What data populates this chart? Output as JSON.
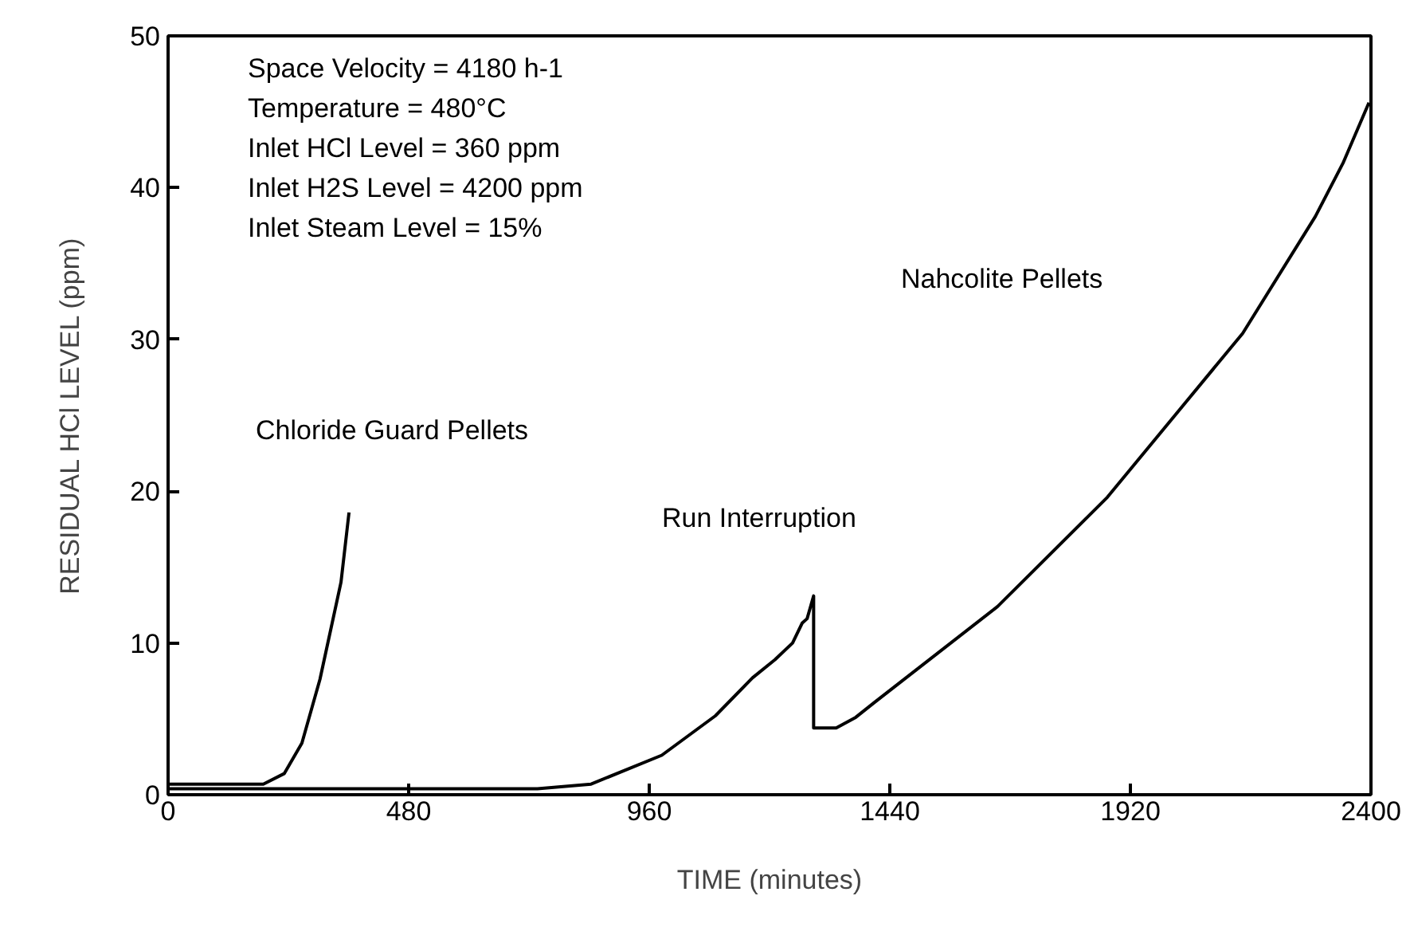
{
  "chart_data": {
    "type": "line",
    "xlabel": "TIME (minutes)",
    "ylabel": "RESIDUAL HCl LEVEL (ppm)",
    "xlim": [
      0,
      2400
    ],
    "ylim": [
      0,
      50
    ],
    "xticks": [
      0,
      480,
      960,
      1440,
      1920,
      2400
    ],
    "yticks": [
      0,
      10,
      20,
      30,
      40,
      50
    ],
    "grid": false,
    "marker": "none",
    "line_style": "solid",
    "series": [
      {
        "color": "#000000",
        "x": [
          0,
          190,
          232,
          267,
          303,
          345,
          361
        ],
        "values": [
          0.7,
          0.7,
          1.4,
          3.4,
          7.6,
          14,
          18.6
        ]
      },
      {
        "color": "#000000",
        "x": [
          0,
          737,
          844,
          985,
          1092,
          1166,
          1211,
          1246,
          1265,
          1275,
          1288,
          1288,
          1333,
          1372,
          1410,
          1655,
          1874,
          2144,
          2289,
          2344,
          2396
        ],
        "values": [
          0.4,
          0.4,
          0.7,
          2.6,
          5.2,
          7.7,
          8.9,
          10,
          11.3,
          11.6,
          13.1,
          4.4,
          4.4,
          5.1,
          6.1,
          12.4,
          19.6,
          30.4,
          38.1,
          41.6,
          45.6
        ]
      }
    ],
    "annotations": [
      "Space Velocity = 4180 h-1",
      "Temperature = 480°C",
      "Inlet HCl Level = 360 ppm",
      "Inlet H2S Level = 4200 ppm",
      "Inlet Steam Level = 15%",
      "Chloride Guard Pellets",
      "Run Interruption",
      "Nahcolite Pellets"
    ]
  }
}
